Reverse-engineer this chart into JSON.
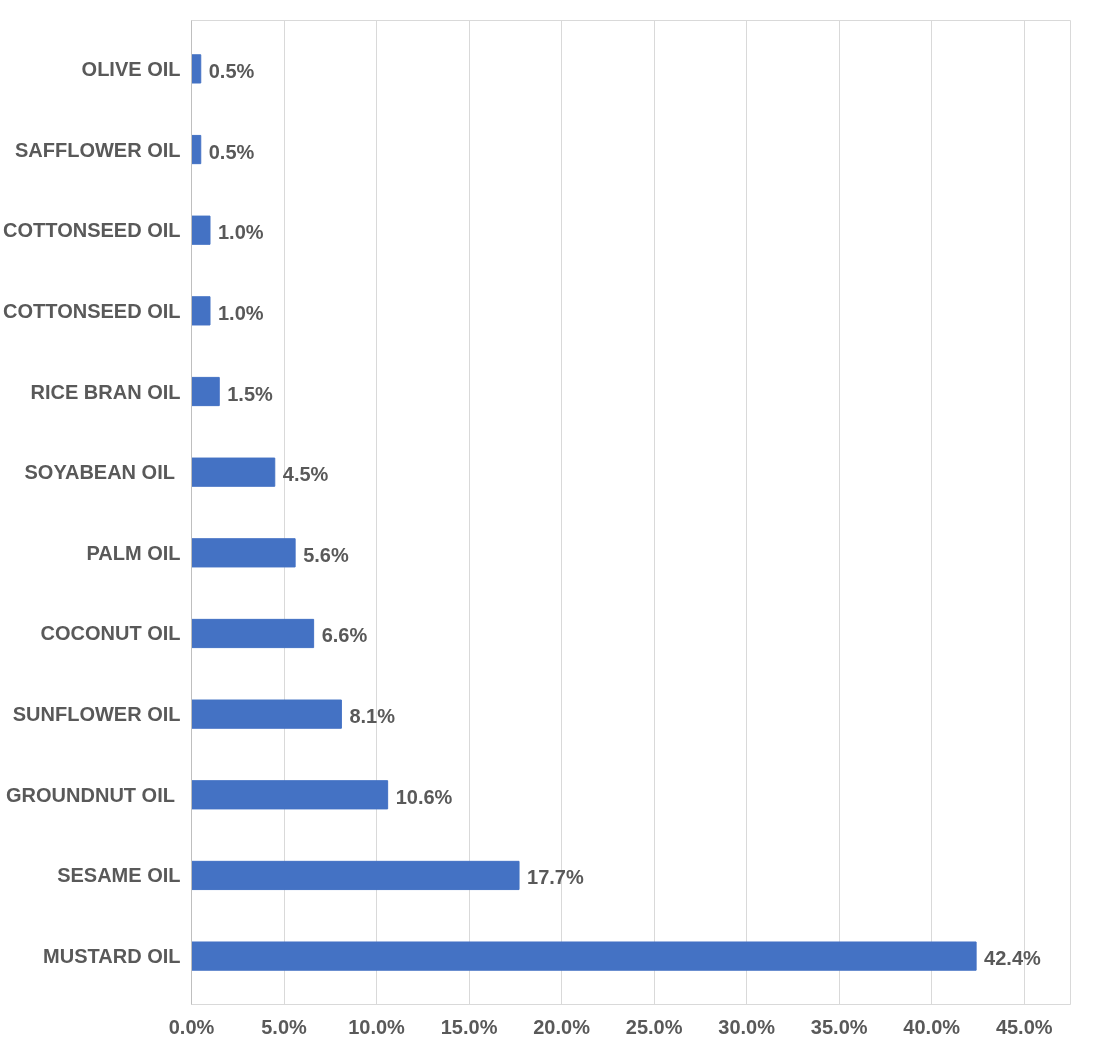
{
  "chart_data": {
    "type": "bar",
    "orientation": "horizontal",
    "categories": [
      "OLIVE OIL",
      "SAFFLOWER OIL",
      "COTTONSEED OIL",
      "COTTONSEED OIL",
      "RICE BRAN OIL",
      "SOYABEAN  OIL",
      "PALM OIL",
      "COCONUT OIL",
      "SUNFLOWER OIL",
      "GROUNDNUT  OIL",
      "SESAME OIL",
      "MUSTARD OIL"
    ],
    "values": [
      0.5,
      0.5,
      1.0,
      1.0,
      1.5,
      4.5,
      5.6,
      6.6,
      8.1,
      10.6,
      17.7,
      42.4
    ],
    "value_labels": [
      "0.5%",
      "0.5%",
      "1.0%",
      "1.0%",
      "1.5%",
      "4.5%",
      "5.6%",
      "6.6%",
      "8.1%",
      "10.6%",
      "17.7%",
      "42.4%"
    ],
    "color": "#4472c4",
    "xlim": [
      0,
      47.5
    ],
    "xticks": [
      {
        "value": 0,
        "label": "0.0%"
      },
      {
        "value": 5,
        "label": "5.0%"
      },
      {
        "value": 10,
        "label": "10.0%"
      },
      {
        "value": 15,
        "label": "15.0%"
      },
      {
        "value": 20,
        "label": "20.0%"
      },
      {
        "value": 25,
        "label": "25.0%"
      },
      {
        "value": 30,
        "label": "30.0%"
      },
      {
        "value": 35,
        "label": "35.0%"
      },
      {
        "value": 40,
        "label": "40.0%"
      },
      {
        "value": 45,
        "label": "45.0%"
      }
    ],
    "grid": "x"
  }
}
